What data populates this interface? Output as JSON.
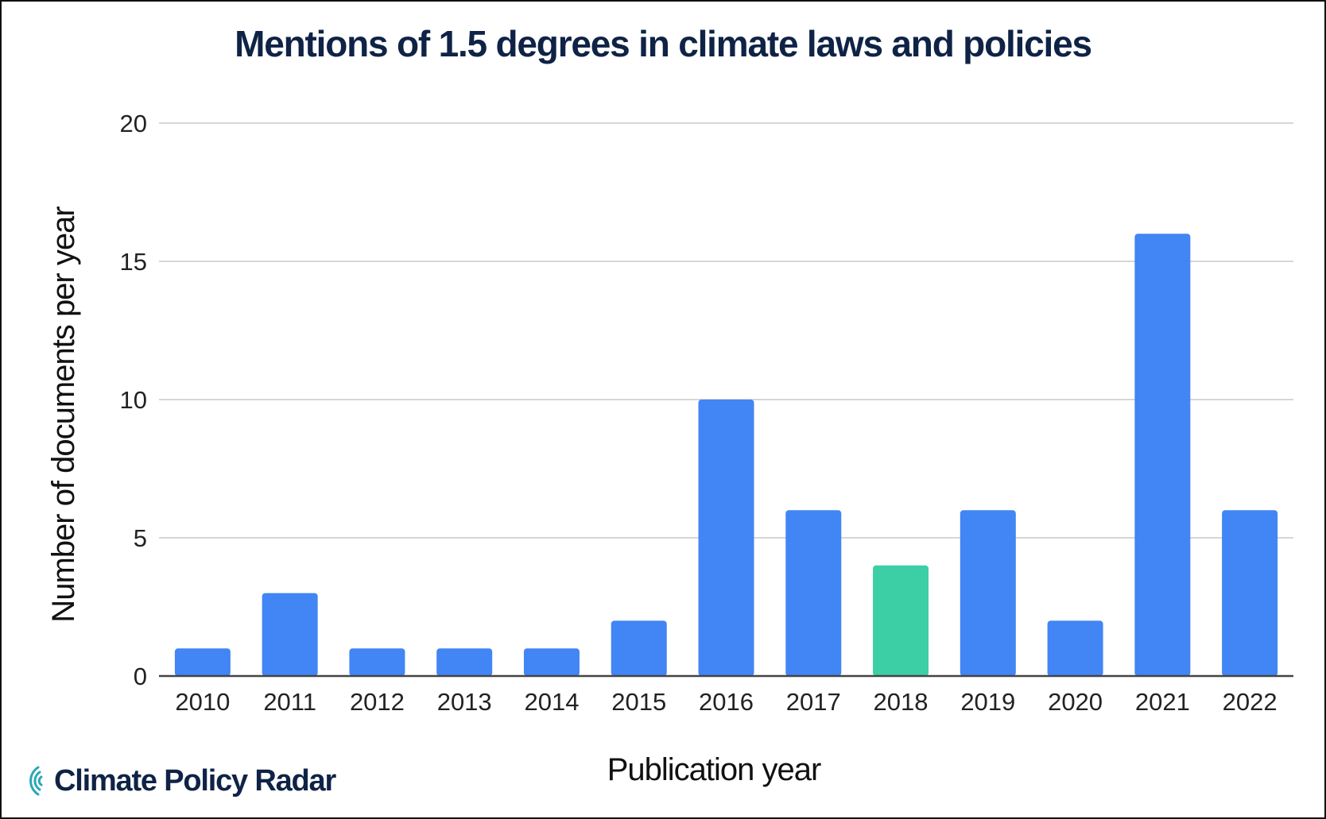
{
  "colors": {
    "bar_default": "#4285f4",
    "bar_highlight": "#3ccfa6",
    "navy": "#0f2346",
    "grid": "#d6d6d6",
    "axis": "#444444"
  },
  "brand": {
    "name": "Climate Policy Radar",
    "icon": "radar-arcs-icon"
  },
  "chart_data": {
    "type": "bar",
    "title": "Mentions of 1.5 degrees in climate laws and policies",
    "xlabel": "Publication year",
    "ylabel": "Number of documents per year",
    "categories": [
      "2010",
      "2011",
      "2012",
      "2013",
      "2014",
      "2015",
      "2016",
      "2017",
      "2018",
      "2019",
      "2020",
      "2021",
      "2022"
    ],
    "values": [
      1,
      3,
      1,
      1,
      1,
      2,
      10,
      6,
      4,
      6,
      2,
      16,
      6
    ],
    "highlight_category": "2018",
    "ylim": [
      0,
      20
    ],
    "yticks": [
      0,
      5,
      10,
      15,
      20
    ],
    "grid": true,
    "legend": "none"
  }
}
